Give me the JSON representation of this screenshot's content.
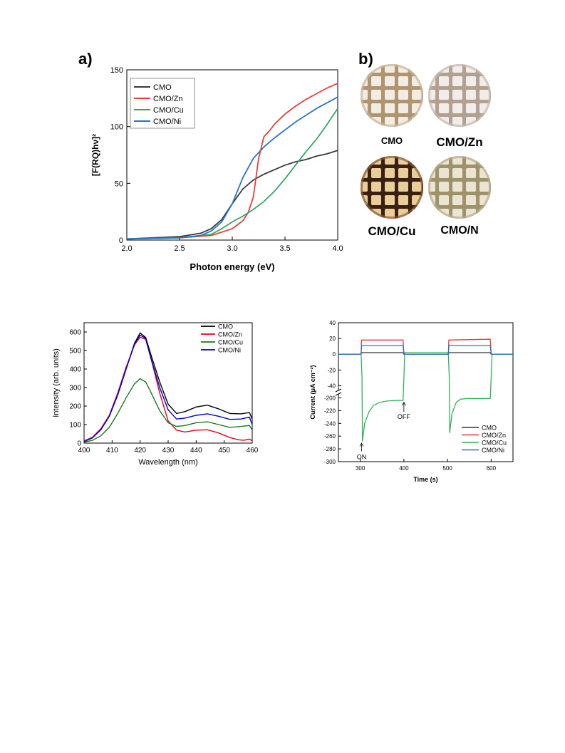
{
  "panel_labels": {
    "a": "a)",
    "b": "b)"
  },
  "photos": {
    "items": [
      {
        "caption": "CMO",
        "bg": "#c9b79a",
        "grid": "#f4f0ea",
        "line": "#b09470"
      },
      {
        "caption": "CMO/Zn",
        "bg": "#c6b9ab",
        "grid": "#f3f1f0",
        "line": "#b2a090"
      },
      {
        "caption": "CMO/Cu",
        "bg": "#8a5a30",
        "grid": "#f2d8a2",
        "line": "#3a2010"
      },
      {
        "caption": "CMO/N",
        "bg": "#b9ac8a",
        "grid": "#efe9d8",
        "line": "#9e926a"
      }
    ]
  },
  "colors": {
    "CMO": "#3a3a3a",
    "CMO/Zn": "#e5403a",
    "CMO/Cu": "#33a864",
    "CMO/Ni": "#2a74c9",
    "pl_CMO": "#000000",
    "pl_Zn": "#e8001a",
    "pl_Cu": "#1a7a1a",
    "pl_Ni": "#0000cc",
    "pc_CMO": "#333333",
    "pc_Zn": "#e8333a",
    "pc_Cu": "#2fb457",
    "pc_Ni": "#2a70c8"
  },
  "chart_data": [
    {
      "type": "line",
      "xlabel": "Photon energy (eV)",
      "ylabel": "[F(RQ)hν]²",
      "xlim": [
        2.0,
        4.0
      ],
      "ylim": [
        0,
        150
      ],
      "xticks": [
        "2.0",
        "2.5",
        "3.0",
        "3.5",
        "4.0"
      ],
      "yticks": [
        "0",
        "50",
        "100",
        "150"
      ],
      "legend": "top-left",
      "series": [
        {
          "name": "CMO",
          "x": [
            2.0,
            2.5,
            2.7,
            2.8,
            2.9,
            3.0,
            3.1,
            3.2,
            3.3,
            3.4,
            3.5,
            3.6,
            3.7,
            3.8,
            3.9,
            4.0
          ],
          "y": [
            1,
            3,
            6,
            10,
            18,
            32,
            45,
            53,
            58,
            62,
            66,
            69,
            71,
            74,
            76,
            79
          ]
        },
        {
          "name": "CMO/Zn",
          "x": [
            2.0,
            2.5,
            2.8,
            3.0,
            3.1,
            3.15,
            3.2,
            3.25,
            3.3,
            3.35,
            3.4,
            3.5,
            3.6,
            3.7,
            3.8,
            3.9,
            4.0
          ],
          "y": [
            1,
            2,
            4,
            10,
            17,
            24,
            38,
            72,
            91,
            96,
            102,
            111,
            118,
            124,
            129,
            134,
            138
          ]
        },
        {
          "name": "CMO/Cu",
          "x": [
            2.0,
            2.5,
            2.8,
            2.9,
            3.0,
            3.1,
            3.2,
            3.3,
            3.4,
            3.5,
            3.6,
            3.7,
            3.8,
            3.9,
            4.0
          ],
          "y": [
            1,
            2,
            5,
            10,
            16,
            21,
            27,
            34,
            43,
            54,
            66,
            78,
            89,
            102,
            116
          ]
        },
        {
          "name": "CMO/Ni",
          "x": [
            2.0,
            2.5,
            2.7,
            2.8,
            2.9,
            3.0,
            3.1,
            3.2,
            3.3,
            3.4,
            3.5,
            3.6,
            3.7,
            3.8,
            3.9,
            4.0
          ],
          "y": [
            1,
            2,
            4,
            8,
            16,
            32,
            55,
            72,
            82,
            90,
            97,
            104,
            110,
            116,
            121,
            126
          ]
        }
      ]
    },
    {
      "type": "line",
      "xlabel": "Wavelength (nm)",
      "ylabel": "Intensity (arb. units)",
      "xlim": [
        400,
        460
      ],
      "ylim": [
        0,
        650
      ],
      "xticks": [
        "400",
        "410",
        "420",
        "430",
        "440",
        "450",
        "460"
      ],
      "yticks": [
        "0",
        "100",
        "200",
        "300",
        "400",
        "500",
        "600"
      ],
      "legend": "top-right",
      "series": [
        {
          "name": "CMO",
          "x": [
            400,
            403,
            406,
            409,
            412,
            415,
            418,
            420,
            422,
            424,
            427,
            430,
            433,
            436,
            440,
            444,
            448,
            452,
            456,
            459,
            460
          ],
          "y": [
            10,
            30,
            75,
            145,
            260,
            400,
            540,
            595,
            570,
            470,
            330,
            210,
            160,
            170,
            195,
            205,
            185,
            160,
            158,
            165,
            130
          ]
        },
        {
          "name": "CMO/Zn",
          "x": [
            400,
            403,
            406,
            409,
            412,
            415,
            418,
            420,
            422,
            424,
            427,
            430,
            433,
            436,
            440,
            444,
            448,
            452,
            455,
            457,
            459,
            460
          ],
          "y": [
            12,
            32,
            78,
            150,
            270,
            410,
            530,
            572,
            560,
            450,
            270,
            120,
            70,
            60,
            70,
            72,
            55,
            30,
            18,
            15,
            22,
            12
          ]
        },
        {
          "name": "CMO/Cu",
          "x": [
            400,
            403,
            406,
            409,
            412,
            415,
            418,
            420,
            422,
            424,
            427,
            430,
            433,
            436,
            440,
            444,
            448,
            452,
            456,
            459,
            460
          ],
          "y": [
            5,
            15,
            40,
            85,
            160,
            245,
            320,
            348,
            330,
            270,
            175,
            110,
            90,
            95,
            110,
            115,
            100,
            85,
            90,
            95,
            70
          ]
        },
        {
          "name": "CMO/Ni",
          "x": [
            400,
            403,
            406,
            409,
            412,
            415,
            418,
            420,
            422,
            424,
            427,
            430,
            433,
            436,
            440,
            444,
            448,
            452,
            456,
            459,
            460
          ],
          "y": [
            8,
            28,
            72,
            145,
            260,
            400,
            535,
            583,
            565,
            450,
            300,
            180,
            130,
            135,
            150,
            158,
            145,
            128,
            130,
            140,
            100
          ]
        }
      ]
    },
    {
      "type": "line",
      "xlabel": "Time (s)",
      "ylabel": "Current (μA cm⁻²)",
      "xlim": [
        250,
        650
      ],
      "xticks": [
        "300",
        "400",
        "500",
        "600"
      ],
      "yticks_upper": [
        "40",
        "20",
        "0",
        "-20",
        "-40"
      ],
      "yticks_lower": [
        "-200",
        "-220",
        "-240",
        "-260",
        "-280",
        "-300"
      ],
      "axis_break": "between -40 and -200",
      "legend": "bottom-right",
      "annotations": [
        "ON",
        "OFF"
      ],
      "series": [
        {
          "name": "CMO",
          "x": [
            250,
            302,
            303,
            398,
            400,
            502,
            503,
            598,
            600,
            650
          ],
          "y": [
            0,
            0,
            2,
            2,
            0,
            0,
            2,
            2,
            0,
            0
          ]
        },
        {
          "name": "CMO/Zn",
          "x": [
            250,
            302,
            303,
            398,
            400,
            502,
            503,
            598,
            600,
            650
          ],
          "y": [
            0,
            0,
            18,
            18,
            0,
            0,
            18,
            19,
            0,
            0
          ]
        },
        {
          "name": "CMO/Cu",
          "x": [
            250,
            302,
            304,
            305,
            310,
            320,
            330,
            345,
            360,
            380,
            398,
            400,
            402,
            500,
            502,
            504,
            505,
            510,
            520,
            530,
            545,
            560,
            580,
            598,
            600,
            602,
            650
          ],
          "y": [
            0,
            0,
            -30,
            -268,
            -240,
            -222,
            -212,
            -207,
            -205,
            -204,
            -204,
            -30,
            2,
            2,
            0,
            -30,
            -255,
            -225,
            -207,
            -202,
            -201,
            -201,
            -201,
            -201,
            -30,
            0,
            0
          ]
        },
        {
          "name": "CMO/Ni",
          "x": [
            250,
            302,
            303,
            398,
            400,
            502,
            503,
            598,
            600,
            650
          ],
          "y": [
            0,
            0,
            11,
            11,
            0,
            0,
            11,
            11,
            0,
            0
          ]
        }
      ]
    }
  ]
}
